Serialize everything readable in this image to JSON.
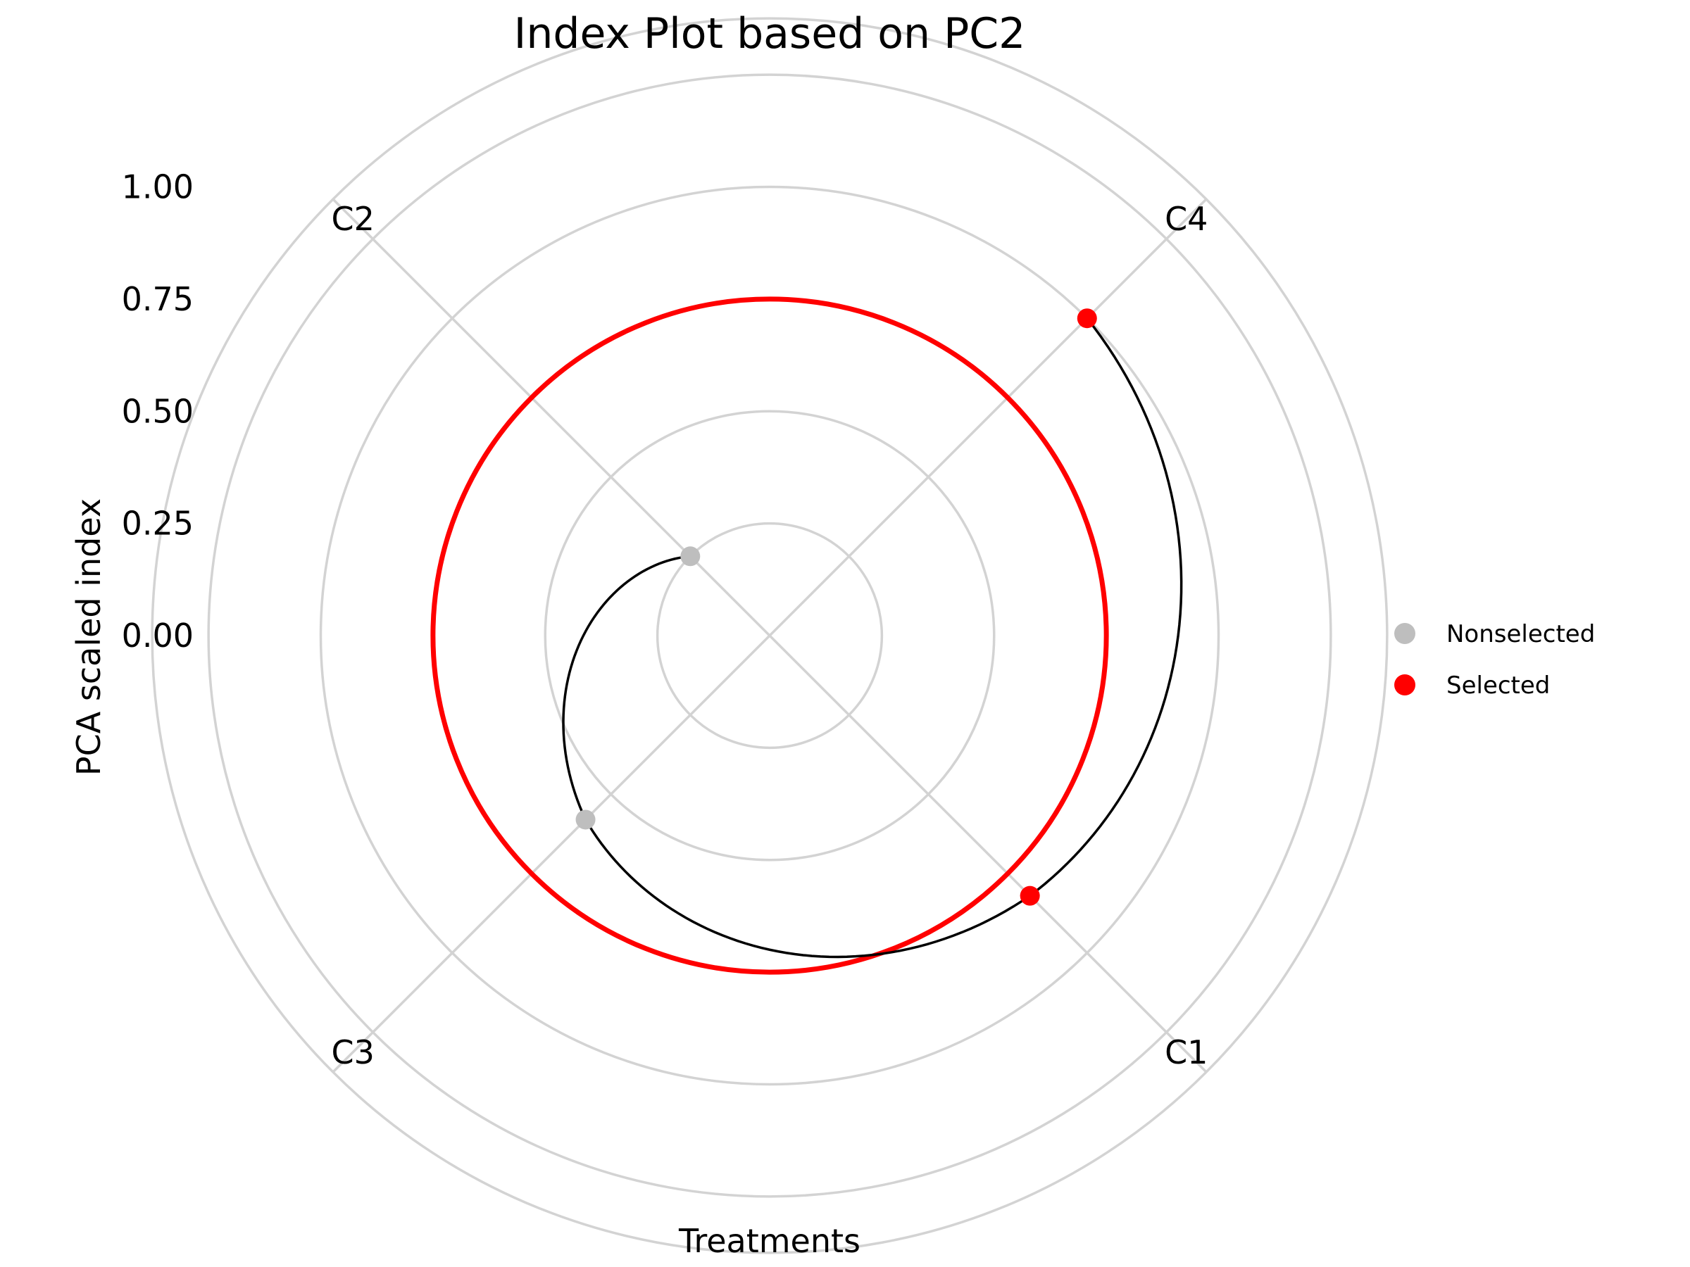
{
  "chart_data": {
    "type": "radar",
    "title": "Index Plot based on PC2",
    "xlabel": "Treatments",
    "ylabel": "PCA scaled index",
    "categories": [
      "C1",
      "C2",
      "C3",
      "C4"
    ],
    "rlim": [
      -0.25,
      1.0
    ],
    "r_ticks": [
      0.0,
      0.25,
      0.5,
      0.75,
      1.0
    ],
    "r_tick_labels": [
      "0.00",
      "0.25",
      "0.50",
      "0.75",
      "1.00"
    ],
    "series": [
      {
        "points": [
          {
            "category": "C4",
            "value": 0.75,
            "group": "Selected"
          },
          {
            "category": "C1",
            "value": 0.57,
            "group": "Selected"
          },
          {
            "category": "C3",
            "value": 0.33,
            "group": "Nonselected"
          },
          {
            "category": "C2",
            "value": 0.0,
            "group": "Nonselected"
          }
        ]
      }
    ],
    "reference_line": {
      "value": 0.5,
      "color": "#FF0000"
    },
    "legend": {
      "position": "right",
      "entries": [
        {
          "label": "Nonselected",
          "color": "#BEBEBE"
        },
        {
          "label": "Selected",
          "color": "#FF0000"
        }
      ]
    },
    "grid": true,
    "colors": {
      "grid": "#D3D3D3",
      "line": "#000000",
      "reference": "#FF0000",
      "nonselected": "#BEBEBE",
      "selected": "#FF0000"
    }
  }
}
